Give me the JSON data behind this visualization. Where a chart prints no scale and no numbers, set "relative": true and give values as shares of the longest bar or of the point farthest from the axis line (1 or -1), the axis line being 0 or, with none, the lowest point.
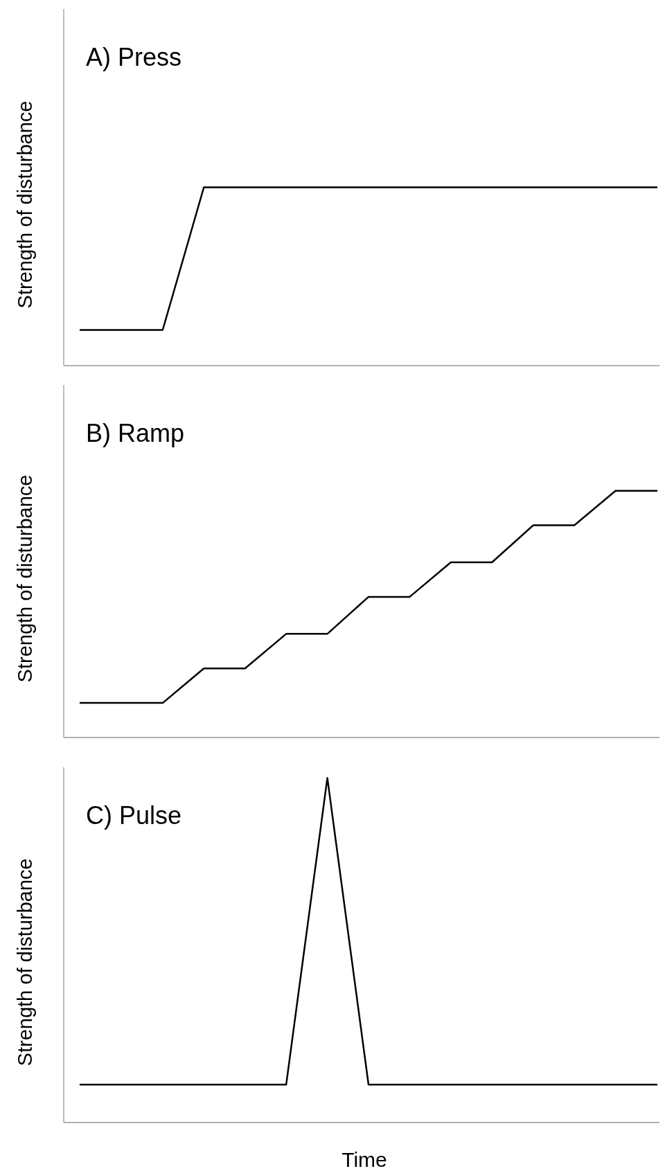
{
  "chart_data": [
    {
      "type": "line",
      "title": "A) Press",
      "ylabel": "Strength of disturbance",
      "relative": true,
      "categories": [
        null,
        null,
        null,
        null,
        null,
        null,
        null,
        null,
        null,
        null,
        null,
        null,
        null,
        null,
        null
      ],
      "series": [
        {
          "color": "#000000",
          "values": [
            0.2,
            0.2,
            0.2,
            1,
            1,
            1,
            1,
            1,
            1,
            1,
            1,
            1,
            1,
            1,
            1
          ]
        }
      ]
    },
    {
      "type": "line",
      "title": "B) Ramp",
      "ylabel": "Strength of disturbance",
      "relative": true,
      "categories": [
        null,
        null,
        null,
        null,
        null,
        null,
        null,
        null,
        null,
        null,
        null,
        null,
        null,
        null,
        null
      ],
      "series": [
        {
          "color": "#000000",
          "values": [
            0.14,
            0.14,
            0.14,
            0.28,
            0.28,
            0.42,
            0.42,
            0.57,
            0.57,
            0.71,
            0.71,
            0.86,
            0.86,
            1,
            1
          ]
        }
      ]
    },
    {
      "type": "line",
      "title": "C) Pulse",
      "ylabel": "Strength of disturbance",
      "xlabel": "Time",
      "relative": true,
      "categories": [
        null,
        null,
        null,
        null,
        null,
        null,
        null,
        null,
        null,
        null,
        null,
        null,
        null,
        null,
        null
      ],
      "series": [
        {
          "color": "#000000",
          "values": [
            0.11,
            0.11,
            0.11,
            0.11,
            0.11,
            0.11,
            1,
            0.11,
            0.11,
            0.11,
            0.11,
            0.11,
            0.11,
            0.11,
            0.11
          ]
        }
      ]
    }
  ]
}
